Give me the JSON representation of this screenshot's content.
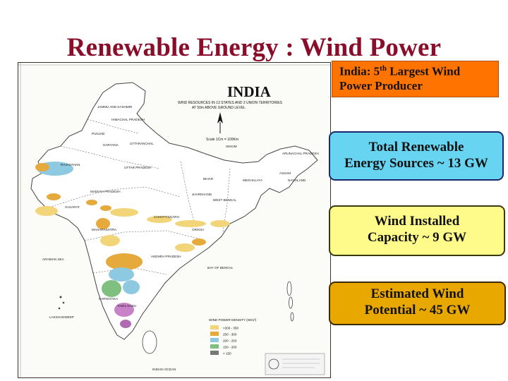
{
  "slide": {
    "title": "Renewable Energy : Wind Power"
  },
  "map": {
    "heading": "INDIA",
    "subheading_line1": "WIND RESOURCES IN 13 STATES AND 2 UNION TERRITORIES",
    "subheading_line2": "AT 50m ABOVE GROUND LEVEL",
    "scale_label": "Scale 1Cm = 100Km",
    "legend_title": "WIND POWER DENSITY (W/m²)",
    "legend": [
      {
        "label": ">300 - 350",
        "color": "#f2d479"
      },
      {
        "label": "250 - 300",
        "color": "#e6a93c"
      },
      {
        "label": "200 - 250",
        "color": "#8dc9e0"
      },
      {
        "label": "150 - 200",
        "color": "#7fbf7f"
      },
      {
        "label": "< 150",
        "color": "#777777"
      }
    ],
    "labels": {
      "jk": "JAMMU AND KASHMIR",
      "hp": "HIMACHAL PRADESH",
      "punjab": "PUNJAB",
      "haryana": "HARYANA",
      "uttaranchal": "UTTARANCHAL",
      "rajasthan": "RAJASTHAN",
      "up": "UTTAR PRADESH",
      "sikkim": "SIKKIM",
      "arunachal": "ARUNACHAL PRADESH",
      "assam": "ASSAM",
      "nagaland": "NAGALAND",
      "meghalaya": "MEGHALAYA",
      "bihar": "BIHAR",
      "gujarat": "GUJARAT",
      "mp": "MADHYA PRADESH",
      "jharkhand": "JHARKHAND",
      "wb": "WEST BENGAL",
      "chhattisgarh": "CHHATTISGARH",
      "orissa": "ORISSA",
      "maharashtra": "MAHARASHTRA",
      "ap": "ANDHRA PRADESH",
      "karnataka": "KARNATAKA",
      "tn": "TAMIL NADU",
      "arabian": "ARABIAN SEA",
      "bay": "BAY OF BENGAL",
      "ocean": "INDIAN OCEAN",
      "lakshadweep": "LAKSHADWEEP"
    }
  },
  "boxes": {
    "producer_prefix": "India: 5",
    "producer_sup": "th",
    "producer_rest": " Largest Wind",
    "producer_line2": "Power Producer",
    "renewable_line1": "Total Renewable",
    "renewable_line2": "Energy Sources ~ 13 GW",
    "installed_line1": "Wind Installed",
    "installed_line2": "Capacity ~ 9 GW",
    "potential_line1": "Estimated Wind",
    "potential_line2": "Potential ~ 45 GW"
  }
}
